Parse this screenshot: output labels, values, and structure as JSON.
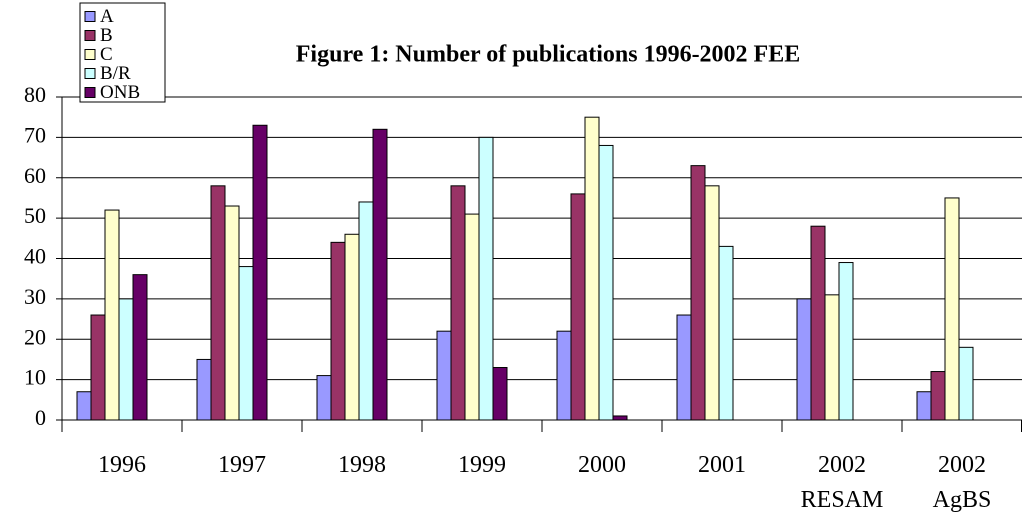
{
  "chart_data": {
    "type": "bar",
    "title": "Figure 1: Number of publications 1996-2002 FEE",
    "categories": [
      "1996",
      "1997",
      "1998",
      "1999",
      "2000",
      "2001",
      "2002\nRESAM",
      "2002\nAgBS"
    ],
    "series": [
      {
        "name": "A",
        "color": "#9999ff",
        "values": [
          7,
          15,
          11,
          22,
          22,
          26,
          30,
          7
        ]
      },
      {
        "name": "B",
        "color": "#993366",
        "values": [
          26,
          58,
          44,
          58,
          56,
          63,
          48,
          12
        ]
      },
      {
        "name": "C",
        "color": "#ffffcc",
        "values": [
          52,
          53,
          46,
          51,
          75,
          58,
          31,
          55
        ]
      },
      {
        "name": "B/R",
        "color": "#ccffff",
        "values": [
          30,
          38,
          54,
          70,
          68,
          43,
          39,
          18
        ]
      },
      {
        "name": "ONB",
        "color": "#660066",
        "values": [
          36,
          73,
          72,
          13,
          1,
          null,
          null,
          null
        ]
      }
    ],
    "ylim": [
      0,
      80
    ],
    "yticks": [
      0,
      10,
      20,
      30,
      40,
      50,
      60,
      70,
      80
    ],
    "grid": true,
    "legend": "upper left"
  }
}
